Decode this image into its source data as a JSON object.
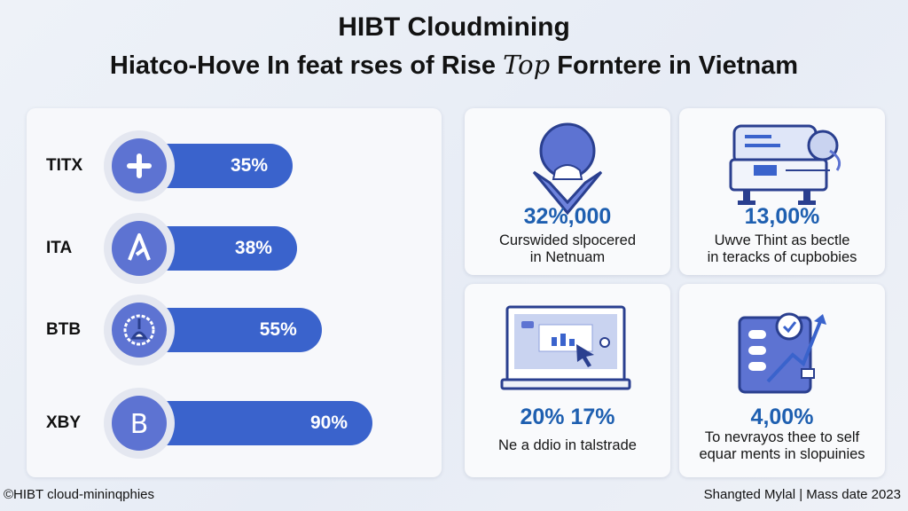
{
  "header": {
    "title": "HIBT Cloudmining",
    "subtitle": "Hiatco-Hove In feat rses of Rise",
    "subtitle_script": "Top",
    "subtitle_end": "Forntere in Vietnam"
  },
  "chart_data": {
    "type": "bar",
    "orientation": "horizontal",
    "categories": [
      "TITX",
      "ITA",
      "BTB",
      "XBY"
    ],
    "values": [
      35,
      38,
      55,
      90
    ],
    "value_labels": [
      "35%",
      "38%",
      "55%",
      "90%"
    ],
    "icons": [
      "plus-icon",
      "triangle-a-icon",
      "gear-coin-icon",
      "bitcoin-icon"
    ],
    "colors": {
      "bar": "#3a63cc",
      "icon": "#5d73d2"
    }
  },
  "stats": [
    {
      "value": "32%,000",
      "line1": "Curswided slpocered",
      "line2": "in Netnuam",
      "icon": "location-pin-icon"
    },
    {
      "value": "13,00%",
      "line1": "Uwve Thint as bectle",
      "line2": "in teracks of cupbobies",
      "icon": "server-machine-icon"
    },
    {
      "value": "20% 17%",
      "line1": "Ne a ddio in talstrade",
      "line2": "",
      "icon": "monitor-cursor-icon"
    },
    {
      "value": "4,00%",
      "line1": "To nevrayos thee to self",
      "line2": "equar ments in slopuinies",
      "icon": "growth-board-icon"
    }
  ],
  "footer": {
    "left": "©HIBT cloud-mininqphies",
    "right": "Shangted Mylal | Mass date 2023"
  },
  "colors": {
    "accent": "#1e5fb0",
    "bar": "#3a63cc",
    "icon": "#5d73d2"
  }
}
